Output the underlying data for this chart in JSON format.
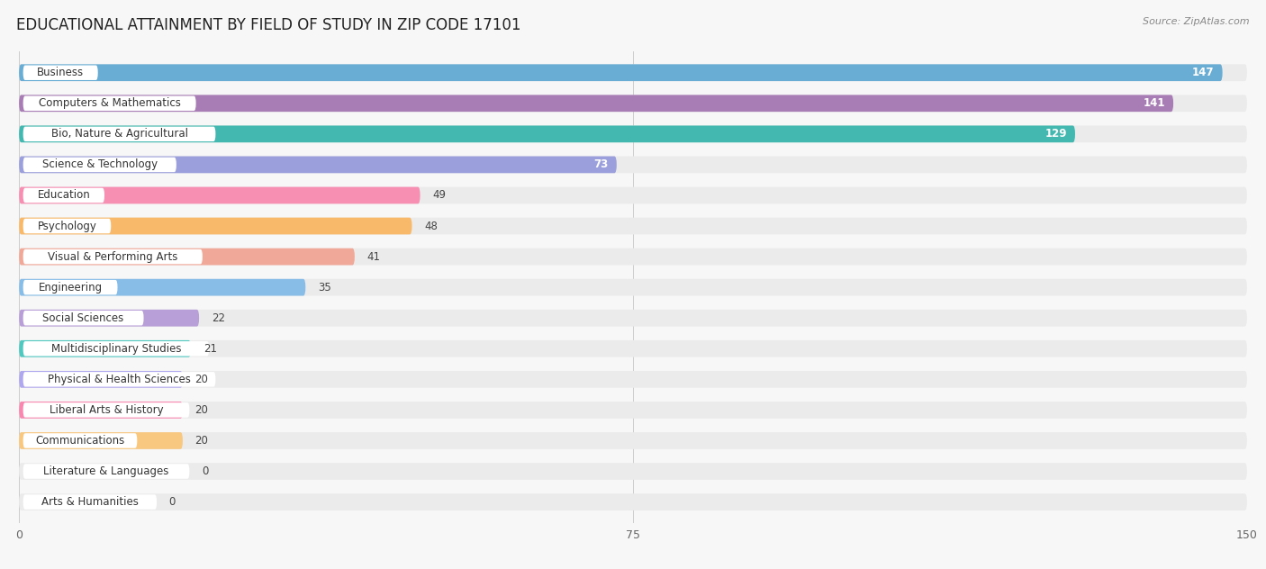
{
  "title": "EDUCATIONAL ATTAINMENT BY FIELD OF STUDY IN ZIP CODE 17101",
  "source": "Source: ZipAtlas.com",
  "categories": [
    "Business",
    "Computers & Mathematics",
    "Bio, Nature & Agricultural",
    "Science & Technology",
    "Education",
    "Psychology",
    "Visual & Performing Arts",
    "Engineering",
    "Social Sciences",
    "Multidisciplinary Studies",
    "Physical & Health Sciences",
    "Liberal Arts & History",
    "Communications",
    "Literature & Languages",
    "Arts & Humanities"
  ],
  "values": [
    147,
    141,
    129,
    73,
    49,
    48,
    41,
    35,
    22,
    21,
    20,
    20,
    20,
    0,
    0
  ],
  "bar_colors": [
    "#6aadd4",
    "#a87cb5",
    "#43b8b0",
    "#9b9fdb",
    "#f78fb3",
    "#f8b96a",
    "#f0a898",
    "#88bde8",
    "#b89fd8",
    "#50c8c0",
    "#b0a8ee",
    "#f888b0",
    "#f8c880",
    "#f0a0a0",
    "#a8c8f0"
  ],
  "xlim": [
    0,
    150
  ],
  "xticks": [
    0,
    75,
    150
  ],
  "background_color": "#f7f7f7",
  "bar_bg_color": "#ebebeb",
  "title_fontsize": 12,
  "label_fontsize": 8.5,
  "value_fontsize": 8.5
}
